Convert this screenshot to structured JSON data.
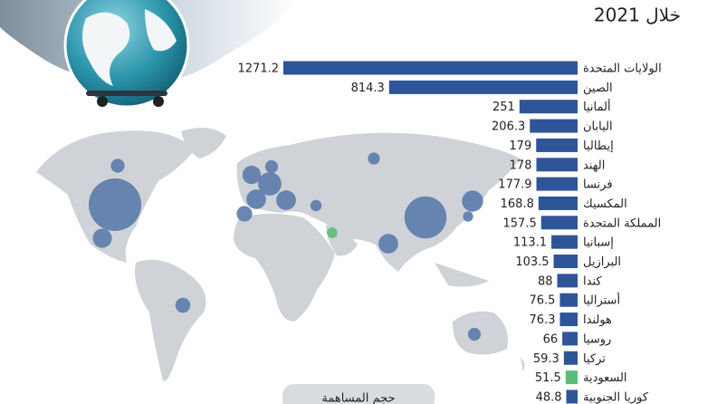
{
  "chart_data": {
    "type": "bar",
    "title": "خلال 2021",
    "categories": [
      "الولايات المتحدة",
      "الصين",
      "ألمانيا",
      "اليابان",
      "إيطاليا",
      "الهند",
      "فرنسا",
      "المكسيك",
      "المملكة المتحدة",
      "إسبانيا",
      "البرازيل",
      "كندا",
      "أستراليا",
      "هولندا",
      "روسيا",
      "تركيا",
      "السعودية",
      "كوريا الجنوبية"
    ],
    "values": [
      1271.2,
      814.3,
      251,
      206.3,
      179,
      178,
      177.9,
      168.8,
      157.5,
      113.1,
      103.5,
      88,
      76.5,
      76.3,
      66,
      59.3,
      51.5,
      48.8
    ],
    "colors": [
      "#2e5597",
      "#2e5597",
      "#2e5597",
      "#2e5597",
      "#2e5597",
      "#2e5597",
      "#2e5597",
      "#2e5597",
      "#2e5597",
      "#2e5597",
      "#2e5597",
      "#2e5597",
      "#2e5597",
      "#2e5597",
      "#2e5597",
      "#2e5597",
      "#5dbb7a",
      "#2e5597"
    ],
    "bubble_colors": [
      "#5a7bab",
      "#5a7bab",
      "#5a7bab",
      "#5a7bab",
      "#5a7bab",
      "#5a7bab",
      "#5a7bab",
      "#5a7bab",
      "#5a7bab",
      "#5a7bab",
      "#5a7bab",
      "#5a7bab",
      "#5a7bab",
      "#5a7bab",
      "#5a7bab",
      "#5a7bab",
      "#5dbb7a",
      "#5a7bab"
    ],
    "legend_title": "حجم المساهمة"
  }
}
